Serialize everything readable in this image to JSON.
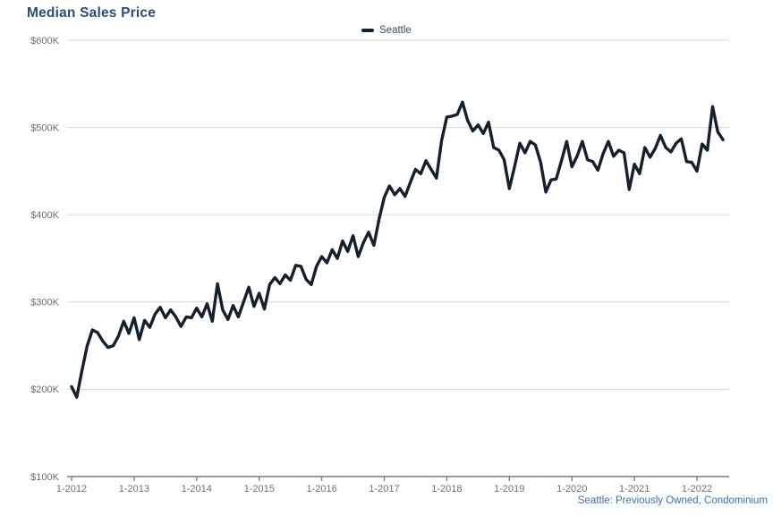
{
  "chart_data": {
    "type": "line",
    "title": "Median Sales Price",
    "legend": {
      "position": "top-center",
      "entries": [
        "Seattle"
      ]
    },
    "legend_label": "Seattle",
    "footnote": "Seattle: Previously Owned, Condominium",
    "grid": "horizontal-only",
    "xlabel": "",
    "ylabel": "",
    "x_unit": "month",
    "x_range": [
      "1-2012",
      "6-2022"
    ],
    "y_unit": "USD (thousands)",
    "ylim_k": [
      100,
      600
    ],
    "y_ticks": [
      {
        "label": "$600K",
        "value_k": 600
      },
      {
        "label": "$500K",
        "value_k": 500
      },
      {
        "label": "$400K",
        "value_k": 400
      },
      {
        "label": "$300K",
        "value_k": 300
      },
      {
        "label": "$200K",
        "value_k": 200
      },
      {
        "label": "$100K",
        "value_k": 100
      }
    ],
    "x_ticks": [
      {
        "label": "1-2012",
        "month_index": 0
      },
      {
        "label": "1-2013",
        "month_index": 12
      },
      {
        "label": "1-2014",
        "month_index": 24
      },
      {
        "label": "1-2015",
        "month_index": 36
      },
      {
        "label": "1-2016",
        "month_index": 48
      },
      {
        "label": "1-2017",
        "month_index": 60
      },
      {
        "label": "1-2018",
        "month_index": 72
      },
      {
        "label": "1-2019",
        "month_index": 84
      },
      {
        "label": "1-2020",
        "month_index": 96
      },
      {
        "label": "1-2021",
        "month_index": 108
      },
      {
        "label": "1-2022",
        "month_index": 120
      }
    ],
    "series": [
      {
        "name": "Seattle",
        "start": "1-2012",
        "frequency": "monthly",
        "values_k": [
          203,
          191,
          222,
          250,
          268,
          265,
          255,
          248,
          250,
          261,
          278,
          264,
          282,
          257,
          279,
          271,
          286,
          294,
          282,
          291,
          283,
          272,
          283,
          282,
          293,
          283,
          298,
          278,
          321,
          291,
          280,
          296,
          283,
          300,
          317,
          295,
          310,
          292,
          320,
          328,
          321,
          331,
          325,
          342,
          341,
          326,
          320,
          341,
          352,
          345,
          360,
          350,
          370,
          358,
          376,
          352,
          368,
          380,
          365,
          395,
          420,
          433,
          423,
          430,
          421,
          437,
          452,
          447,
          462,
          452,
          442,
          485,
          512,
          513,
          515,
          529,
          508,
          496,
          503,
          493,
          506,
          477,
          474,
          463,
          430,
          455,
          482,
          471,
          484,
          480,
          460,
          426,
          440,
          441,
          462,
          484,
          455,
          467,
          484,
          463,
          461,
          451,
          470,
          484,
          467,
          474,
          471,
          429,
          458,
          447,
          477,
          466,
          476,
          491,
          477,
          472,
          482,
          487,
          461,
          460,
          450,
          481,
          474,
          524,
          495,
          486
        ]
      }
    ],
    "colors": {
      "line": "#14202c",
      "title_text": "#2d4d76",
      "legend_text": "#2d4d76",
      "axis_text": "#6f6f6f",
      "gridline": "#d6d6d6",
      "axis_line": "#7a7a7a",
      "footnote_text": "#3e6fb8",
      "background": "#ffffff"
    }
  }
}
